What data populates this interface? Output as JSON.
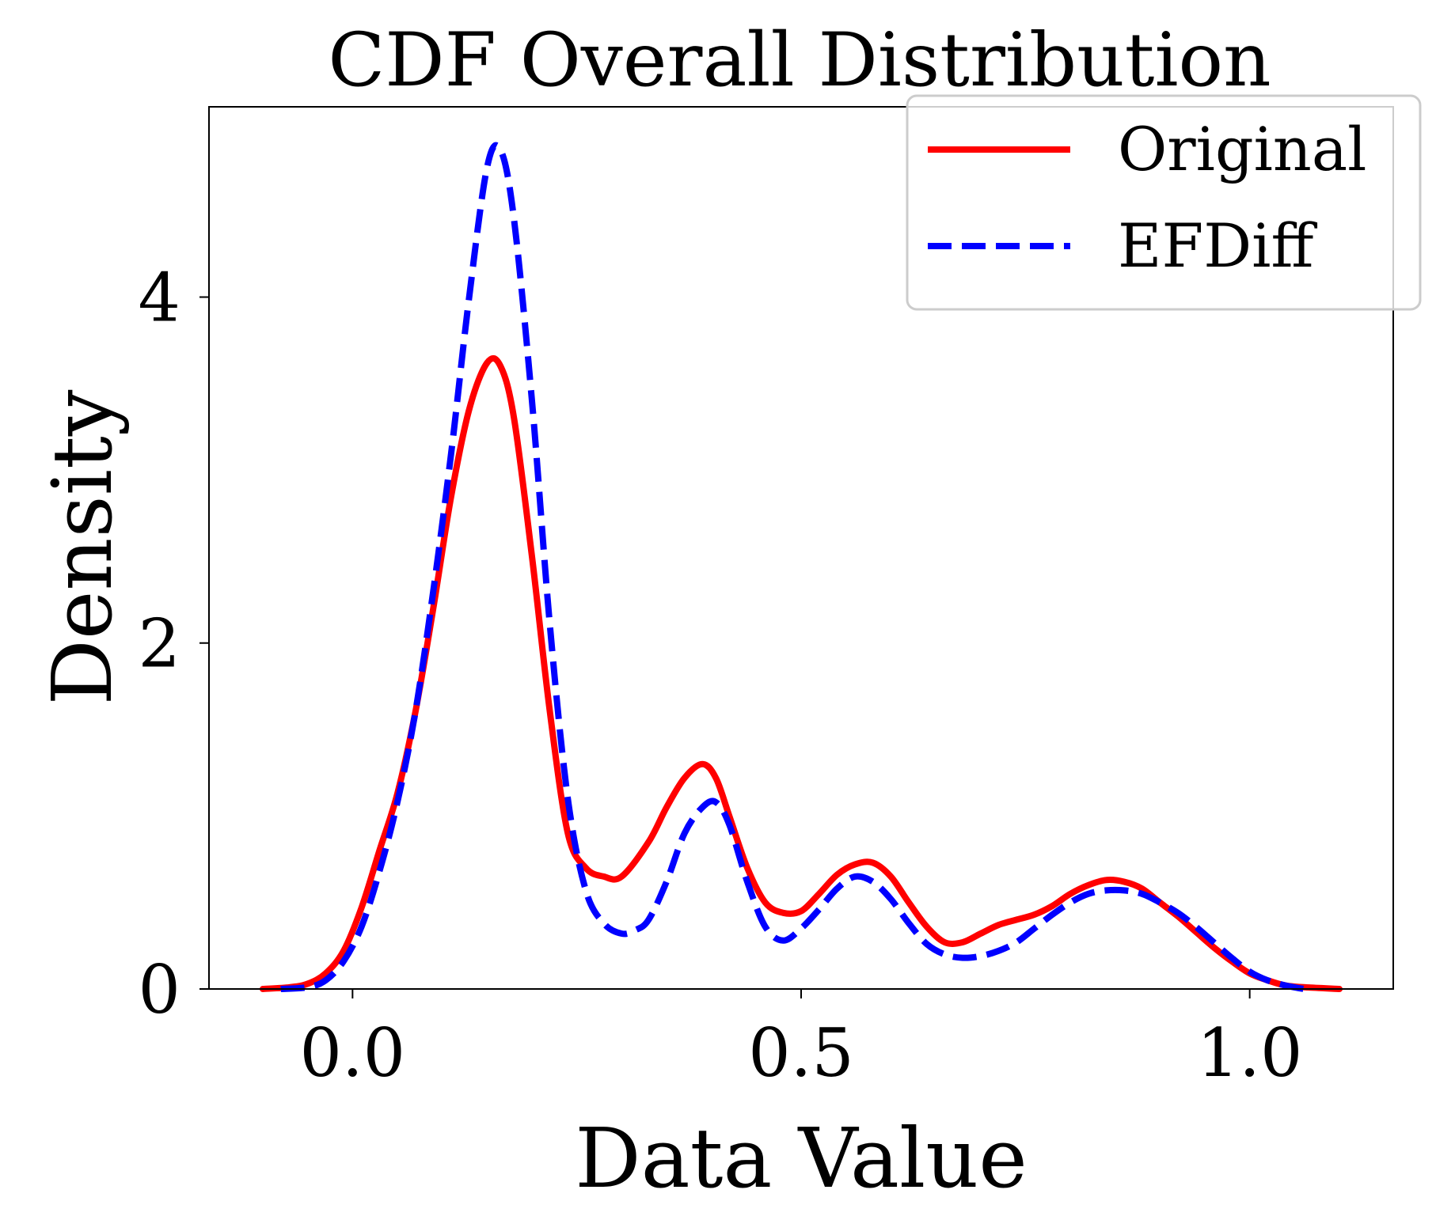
{
  "chart_data": {
    "type": "line",
    "title": "CDF Overall Distribution",
    "xlabel": "Data Value",
    "ylabel": "Density",
    "xlim": [
      -0.16,
      1.16
    ],
    "ylim": [
      0,
      5.1
    ],
    "xticks": [
      0.0,
      0.5,
      1.0
    ],
    "xtick_labels": [
      "0.0",
      "0.5",
      "1.0"
    ],
    "yticks": [
      0,
      2,
      4
    ],
    "ytick_labels": [
      "0",
      "2",
      "4"
    ],
    "grid": false,
    "legend": {
      "placement": "top-right"
    },
    "series": [
      {
        "name": "Original",
        "color": "#ff0000",
        "style": "solid",
        "x": [
          -0.1,
          -0.07,
          -0.05,
          -0.03,
          -0.01,
          0.01,
          0.03,
          0.05,
          0.07,
          0.09,
          0.11,
          0.13,
          0.15,
          0.165,
          0.18,
          0.2,
          0.22,
          0.24,
          0.26,
          0.28,
          0.3,
          0.33,
          0.35,
          0.37,
          0.39,
          0.405,
          0.42,
          0.44,
          0.46,
          0.48,
          0.5,
          0.52,
          0.54,
          0.56,
          0.58,
          0.6,
          0.62,
          0.64,
          0.66,
          0.68,
          0.7,
          0.72,
          0.74,
          0.76,
          0.78,
          0.8,
          0.82,
          0.84,
          0.86,
          0.88,
          0.9,
          0.92,
          0.94,
          0.96,
          0.98,
          1.0,
          1.02,
          1.04,
          1.06,
          1.1
        ],
        "y": [
          0.0,
          0.01,
          0.03,
          0.09,
          0.22,
          0.47,
          0.8,
          1.13,
          1.6,
          2.2,
          2.85,
          3.35,
          3.62,
          3.6,
          3.3,
          2.5,
          1.6,
          0.9,
          0.7,
          0.65,
          0.65,
          0.85,
          1.05,
          1.22,
          1.3,
          1.22,
          1.0,
          0.7,
          0.5,
          0.44,
          0.45,
          0.55,
          0.66,
          0.72,
          0.73,
          0.65,
          0.5,
          0.36,
          0.27,
          0.27,
          0.32,
          0.37,
          0.4,
          0.43,
          0.48,
          0.55,
          0.6,
          0.63,
          0.62,
          0.58,
          0.5,
          0.42,
          0.33,
          0.24,
          0.16,
          0.09,
          0.05,
          0.02,
          0.01,
          0.0
        ]
      },
      {
        "name": "EFDiff",
        "color": "#0000ff",
        "style": "dashed",
        "x": [
          -0.08,
          -0.05,
          -0.03,
          -0.01,
          0.01,
          0.03,
          0.05,
          0.07,
          0.09,
          0.11,
          0.13,
          0.15,
          0.165,
          0.18,
          0.2,
          0.22,
          0.24,
          0.26,
          0.28,
          0.3,
          0.315,
          0.33,
          0.35,
          0.37,
          0.39,
          0.405,
          0.42,
          0.44,
          0.46,
          0.48,
          0.5,
          0.52,
          0.54,
          0.56,
          0.58,
          0.6,
          0.62,
          0.64,
          0.66,
          0.68,
          0.7,
          0.72,
          0.74,
          0.76,
          0.78,
          0.8,
          0.82,
          0.84,
          0.86,
          0.88,
          0.9,
          0.92,
          0.94,
          0.96,
          0.98,
          1.0,
          1.02,
          1.04,
          1.06
        ],
        "y": [
          0.0,
          0.01,
          0.05,
          0.16,
          0.36,
          0.68,
          1.08,
          1.6,
          2.3,
          3.1,
          4.0,
          4.75,
          4.85,
          4.45,
          3.4,
          2.1,
          1.1,
          0.57,
          0.38,
          0.32,
          0.34,
          0.4,
          0.62,
          0.9,
          1.05,
          1.08,
          0.95,
          0.62,
          0.36,
          0.28,
          0.35,
          0.46,
          0.58,
          0.65,
          0.62,
          0.52,
          0.38,
          0.26,
          0.2,
          0.18,
          0.19,
          0.22,
          0.27,
          0.35,
          0.43,
          0.5,
          0.55,
          0.57,
          0.57,
          0.55,
          0.5,
          0.44,
          0.36,
          0.27,
          0.18,
          0.1,
          0.05,
          0.02,
          0.0
        ]
      }
    ]
  }
}
